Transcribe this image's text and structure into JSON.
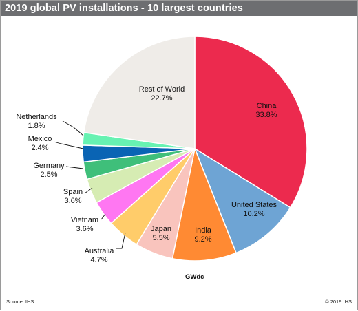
{
  "chart_data": {
    "type": "pie",
    "title": "2019 global PV installations - 10 largest countries",
    "unit_label": "GWdc",
    "source": "Source: IHS",
    "copyright": "© 2019 IHS",
    "slices": [
      {
        "name": "China",
        "value": 33.8,
        "display": "33.8%",
        "color": "#ec2a4e"
      },
      {
        "name": "United States",
        "value": 10.2,
        "display": "10.2%",
        "color": "#6ea4d4"
      },
      {
        "name": "India",
        "value": 9.2,
        "display": "9.2%",
        "color": "#ff8a33"
      },
      {
        "name": "Japan",
        "value": 5.5,
        "display": "5.5%",
        "color": "#f9c4bd"
      },
      {
        "name": "Australia",
        "value": 4.7,
        "display": "4.7%",
        "color": "#ffcc6a"
      },
      {
        "name": "Vietnam",
        "value": 3.6,
        "display": "3.6%",
        "color": "#ff77f2"
      },
      {
        "name": "Spain",
        "value": 3.6,
        "display": "3.6%",
        "color": "#d6ecb3"
      },
      {
        "name": "Germany",
        "value": 2.5,
        "display": "2.5%",
        "color": "#3fbf7a"
      },
      {
        "name": "Mexico",
        "value": 2.4,
        "display": "2.4%",
        "color": "#0a64b4"
      },
      {
        "name": "Netherlands",
        "value": 1.8,
        "display": "1.8%",
        "color": "#67f2b2"
      },
      {
        "name": "Rest of World",
        "value": 22.7,
        "display": "22.7%",
        "color": "#efece8"
      }
    ]
  }
}
